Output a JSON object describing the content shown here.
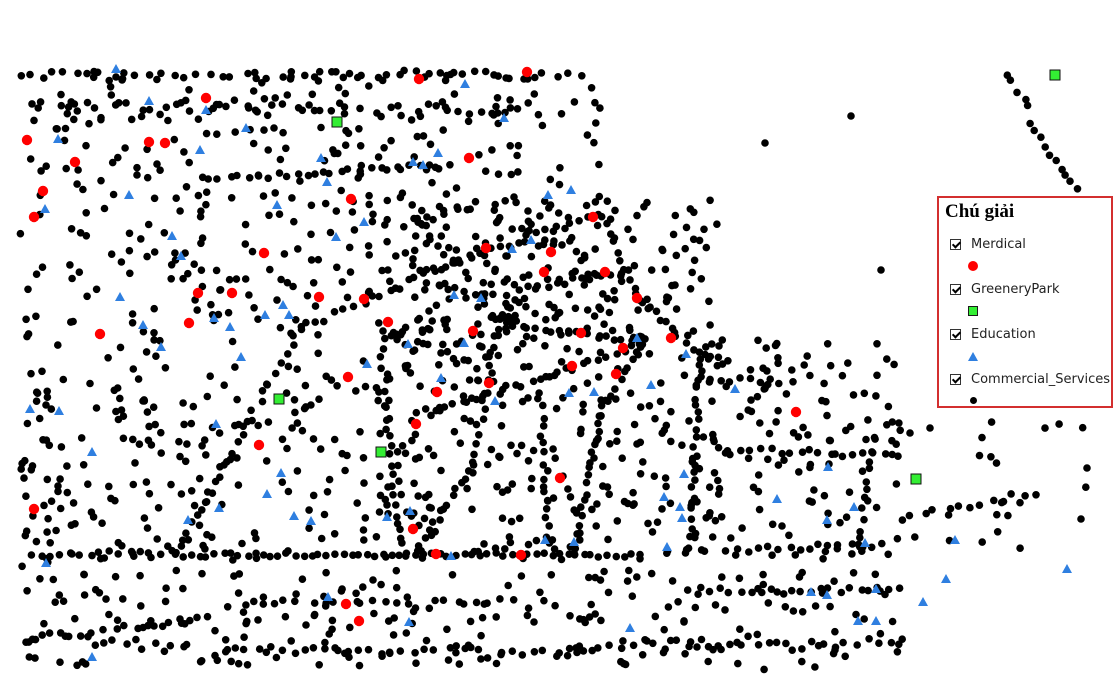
{
  "legend": {
    "title": "Chú giải",
    "layers": [
      {
        "key": "medical",
        "label": "Merdical",
        "checked": true,
        "color": "#ff0000",
        "icon": "red-circle-icon"
      },
      {
        "key": "park",
        "label": "GreeneryPark",
        "checked": true,
        "color": "#33ee33",
        "icon": "green-square-icon"
      },
      {
        "key": "edu",
        "label": "Education",
        "checked": true,
        "color": "#2f7fe0",
        "icon": "blue-triangle-icon"
      },
      {
        "key": "comm",
        "label": "Commercial_Services",
        "checked": true,
        "color": "#000000",
        "icon": "black-dot-icon"
      }
    ]
  }
}
